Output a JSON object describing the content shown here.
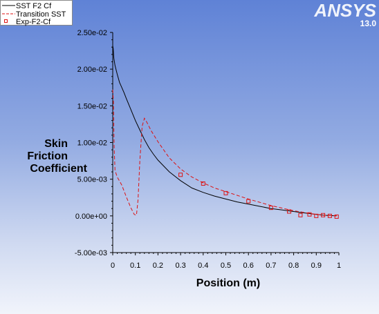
{
  "logo": {
    "brand": "ANSYS",
    "version": "13.0"
  },
  "chart_data": {
    "type": "line",
    "xlabel": "Position (m)",
    "ylabel": [
      "Skin",
      "Friction",
      "Coefficient"
    ],
    "xlim": [
      0,
      1
    ],
    "ylim": [
      -0.005,
      0.025
    ],
    "x_ticks": [
      0,
      0.1,
      0.2,
      0.3,
      0.4,
      0.5,
      0.6,
      0.7,
      0.8,
      0.9,
      1
    ],
    "x_tick_labels": [
      "0",
      "0.1",
      "0.2",
      "0.3",
      "0.4",
      "0.5",
      "0.6",
      "0.7",
      "0.8",
      "0.9",
      "1"
    ],
    "y_ticks": [
      -0.005,
      0,
      0.005,
      0.01,
      0.015,
      0.02,
      0.025
    ],
    "y_tick_labels": [
      "-5.00e-03",
      "0.00e+00",
      "5.00e-03",
      "1.00e-02",
      "1.50e-02",
      "2.00e-02",
      "2.50e-02"
    ],
    "grid": false,
    "legend_position": "top-left",
    "series": [
      {
        "name": "SST F2 Cf",
        "style": "solid",
        "color": "#000000",
        "x": [
          0,
          0.002,
          0.005,
          0.01,
          0.02,
          0.03,
          0.04,
          0.05,
          0.06,
          0.08,
          0.1,
          0.12,
          0.14,
          0.16,
          0.18,
          0.2,
          0.25,
          0.3,
          0.35,
          0.4,
          0.45,
          0.5,
          0.55,
          0.6,
          0.65,
          0.7,
          0.75,
          0.8,
          0.85,
          0.9,
          0.95,
          0.99
        ],
        "y": [
          0.0232,
          0.0228,
          0.0215,
          0.0205,
          0.0193,
          0.0182,
          0.0175,
          0.0168,
          0.016,
          0.0145,
          0.013,
          0.0117,
          0.0104,
          0.0093,
          0.0084,
          0.0076,
          0.006,
          0.0048,
          0.0038,
          0.0032,
          0.0027,
          0.0023,
          0.0019,
          0.0016,
          0.0013,
          0.001,
          0.0008,
          0.0006,
          0.0004,
          0.0002,
          5e-05,
          0.0
        ]
      },
      {
        "name": "Transition SST",
        "style": "dashed",
        "color": "#dd1111",
        "x": [
          0,
          0.003,
          0.006,
          0.01,
          0.02,
          0.04,
          0.06,
          0.08,
          0.095,
          0.105,
          0.112,
          0.12,
          0.13,
          0.14,
          0.15,
          0.17,
          0.2,
          0.25,
          0.3,
          0.35,
          0.4,
          0.45,
          0.5,
          0.6,
          0.7,
          0.8,
          0.9,
          0.95,
          0.99
        ],
        "y": [
          0.0172,
          0.0155,
          0.0095,
          0.0062,
          0.0053,
          0.0042,
          0.0026,
          0.0011,
          0.0002,
          0.0001,
          0.0022,
          0.0075,
          0.0122,
          0.0133,
          0.0128,
          0.0116,
          0.0101,
          0.0079,
          0.0064,
          0.0053,
          0.0045,
          0.0038,
          0.0033,
          0.0023,
          0.0014,
          0.0007,
          0.0002,
          5e-05,
          0.0
        ]
      },
      {
        "name": "Exp-F2-Cf",
        "style": "markers",
        "color": "#dd1111",
        "x": [
          0.3,
          0.4,
          0.5,
          0.6,
          0.7,
          0.78,
          0.83,
          0.87,
          0.9,
          0.93,
          0.96,
          0.99
        ],
        "y": [
          0.0056,
          0.0044,
          0.0031,
          0.002,
          0.0011,
          0.0006,
          0.0001,
          0.0002,
          0.0,
          0.0001,
          0.0,
          -0.0001
        ]
      }
    ]
  }
}
